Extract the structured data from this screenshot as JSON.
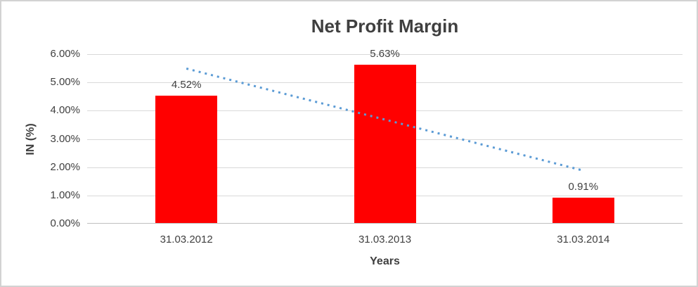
{
  "chart_data": {
    "type": "bar",
    "title": "Net Profit Margin",
    "xlabel": "Years",
    "ylabel": "IN (%)",
    "categories": [
      "31.03.2012",
      "31.03.2013",
      "31.03.2014"
    ],
    "values": [
      4.52,
      5.63,
      0.91
    ],
    "data_labels": [
      "4.52%",
      "5.63%",
      "0.91%"
    ],
    "ylim": [
      0,
      6
    ],
    "ytick_labels_top_to_bottom": [
      "6.00%",
      "5.00%",
      "4.00%",
      "3.00%",
      "2.00%",
      "1.00%",
      "0.00%"
    ],
    "grid": true,
    "legend": "none",
    "bar_color": "#ff0000",
    "trendline": {
      "style": "dotted",
      "color": "#5b9bd5",
      "start_value": 5.49,
      "end_value": 1.88
    },
    "colors": {
      "gridline": "#d9d9d9",
      "axis_line": "#bfbfbf",
      "text": "#404040",
      "title_text": "#3f3f3f",
      "frame_border": "#d2d2d2",
      "background": "#ffffff"
    }
  }
}
